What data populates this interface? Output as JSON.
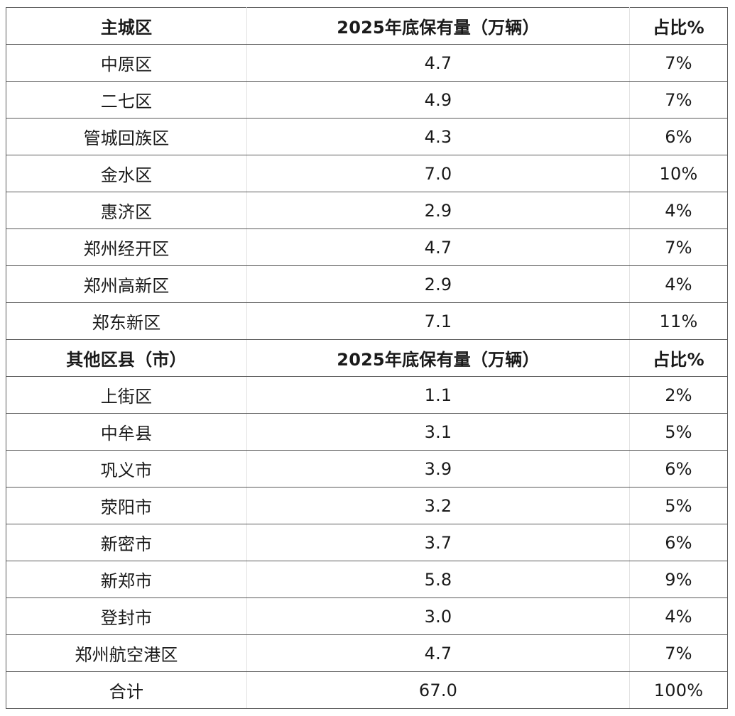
{
  "table": {
    "section1_header": [
      "主城区",
      "2025年底保有量（万辆）",
      "占比%"
    ],
    "section1_rows": [
      [
        "中原区",
        "4.7",
        "7%"
      ],
      [
        "二七区",
        "4.9",
        "7%"
      ],
      [
        "管城回族区",
        "4.3",
        "6%"
      ],
      [
        "金水区",
        "7.0",
        "10%"
      ],
      [
        "惠济区",
        "2.9",
        "4%"
      ],
      [
        "郑州经开区",
        "4.7",
        "7%"
      ],
      [
        "郑州高新区",
        "2.9",
        "4%"
      ],
      [
        "郑东新区",
        "7.1",
        "11%"
      ]
    ],
    "section2_header": [
      "其他区县（市）",
      "2025年底保有量（万辆）",
      "占比%"
    ],
    "section2_rows": [
      [
        "上街区",
        "1.1",
        "2%"
      ],
      [
        "中牟县",
        "3.1",
        "5%"
      ],
      [
        "巩义市",
        "3.9",
        "6%"
      ],
      [
        "荥阳市",
        "3.2",
        "5%"
      ],
      [
        "新密市",
        "3.7",
        "6%"
      ],
      [
        "新郑市",
        "5.8",
        "9%"
      ],
      [
        "登封市",
        "3.0",
        "4%"
      ],
      [
        "郑州航空港区",
        "4.7",
        "7%"
      ]
    ],
    "total_row": [
      "合计",
      "67.0",
      "100%"
    ]
  }
}
